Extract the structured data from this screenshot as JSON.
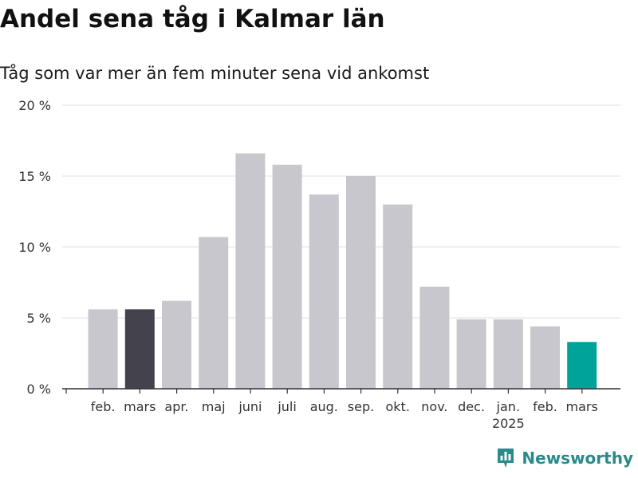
{
  "title": "Andel sena tåg i Kalmar län",
  "subtitle": "Tåg som var mer än fem minuter sena vid ankomst",
  "brand": {
    "name": "Newsworthy",
    "icon": "bar-chart-pin-icon",
    "color": "#2a8a8a"
  },
  "colors": {
    "default": "#c8c7cd",
    "highlight_previous": "#43424d",
    "highlight_latest": "#00a398"
  },
  "chart_data": {
    "type": "bar",
    "title": "Andel sena tåg i Kalmar län",
    "subtitle": "Tåg som var mer än fem minuter sena vid ankomst",
    "xlabel": "",
    "ylabel": "",
    "ylim": [
      0,
      20
    ],
    "yticks": [
      0,
      5,
      10,
      15,
      20
    ],
    "ytick_labels": [
      "0 %",
      "5 %",
      "10 %",
      "15 %",
      "20 %"
    ],
    "grid": true,
    "categories": [
      "feb.",
      "mars",
      "apr.",
      "maj",
      "juni",
      "juli",
      "aug.",
      "sep.",
      "okt.",
      "nov.",
      "dec.",
      "jan.",
      "feb.",
      "mars"
    ],
    "year_labels": [
      "",
      "",
      "",
      "",
      "",
      "",
      "",
      "",
      "",
      "",
      "",
      "2025",
      "",
      ""
    ],
    "values": [
      5.6,
      5.6,
      6.2,
      10.7,
      16.6,
      15.8,
      13.7,
      15.0,
      13.0,
      7.2,
      4.9,
      4.9,
      4.4,
      3.3
    ],
    "highlight": [
      "default",
      "highlight_previous",
      "default",
      "default",
      "default",
      "default",
      "default",
      "default",
      "default",
      "default",
      "default",
      "default",
      "default",
      "highlight_latest"
    ]
  }
}
